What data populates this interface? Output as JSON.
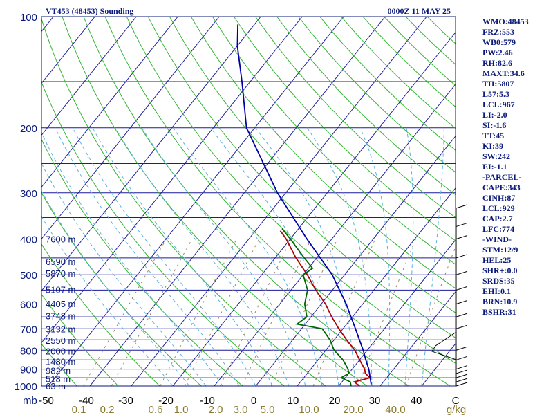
{
  "header": {
    "station": "VT453 (48453) Sounding",
    "time": "0000Z 11 MAY 25"
  },
  "indices": [
    "WMO:48453",
    "FRZ:553",
    "WB0:579",
    "PW:2.46",
    "RH:82.6",
    "MAXT:34.6",
    "TH:5807",
    "L57:5.3",
    "LCL:967",
    "LI:-2.0",
    "SI:-1.6",
    "TT:45",
    "KI:39",
    "SW:242",
    "EI:-1.1",
    "-PARCEL-",
    "CAPE:343",
    "CINH:87",
    "LCL:929",
    "CAP:2.7",
    "LFC:774",
    "-WIND-",
    "STM:12/9",
    "HEL:25",
    "SHR+:0.0",
    "SRDS:35",
    "EHI:0.1",
    "BRN:10.9",
    "BSHR:31"
  ],
  "colors": {
    "frame": "#0a1a7a",
    "isobar": "#1a1a9a",
    "isotherm": "#1a1a9a",
    "dry_adiabat": "#33b533",
    "moist_adiabat": "#5ab0e0",
    "mixing_ratio": "#9a8a60",
    "temperature": "#b00000",
    "dewpoint": "#006600",
    "parcel": "#0000aa",
    "axis_text": "#000000",
    "mixing_text": "#8a7a30"
  },
  "chart_data": {
    "type": "skew-t",
    "title": "VT453 (48453) Sounding",
    "ylabel": "mb",
    "pressure_ticks": [
      100,
      200,
      300,
      400,
      500,
      600,
      700,
      800,
      900,
      1000
    ],
    "pressure_range_mb": [
      1000,
      100
    ],
    "temperature_ticks": [
      "-50",
      "-40",
      "-30",
      "-20",
      "-10",
      "0",
      "10",
      "20",
      "30",
      "40",
      "C"
    ],
    "temperature_range_c": [
      -50,
      50
    ],
    "mixing_ratio_ticks": [
      "0.1",
      "0.2",
      "0.6",
      "1.0",
      "2.0",
      "3.0",
      "5.0",
      "10.0",
      "20.0",
      "40.0",
      "g/kg"
    ],
    "height_labels": [
      {
        "p": 400,
        "label": "7600 m"
      },
      {
        "p": 460,
        "label": "6590 m"
      },
      {
        "p": 495,
        "label": "5870 m"
      },
      {
        "p": 548,
        "label": "5107 m"
      },
      {
        "p": 598,
        "label": "4405 m"
      },
      {
        "p": 645,
        "label": "3748 m"
      },
      {
        "p": 700,
        "label": "3132 m"
      },
      {
        "p": 752,
        "label": "2550 m"
      },
      {
        "p": 805,
        "label": "2000 m"
      },
      {
        "p": 858,
        "label": "1480 m"
      },
      {
        "p": 908,
        "label": "982 m"
      },
      {
        "p": 955,
        "label": "518 m"
      },
      {
        "p": 1000,
        "label": "63 m"
      }
    ],
    "series": [
      {
        "points": [
          [
            1000,
            25
          ],
          [
            975,
            23
          ],
          [
            950,
            26
          ],
          [
            925,
            24
          ],
          [
            900,
            23
          ],
          [
            850,
            20
          ],
          [
            800,
            17
          ],
          [
            750,
            13
          ],
          [
            700,
            9
          ],
          [
            650,
            5
          ],
          [
            600,
            1
          ],
          [
            550,
            -4
          ],
          [
            500,
            -9
          ],
          [
            450,
            -15
          ],
          [
            400,
            -21
          ],
          [
            380,
            -24
          ]
        ]
      },
      {
        "points": [
          [
            1000,
            23
          ],
          [
            975,
            22
          ],
          [
            950,
            19
          ],
          [
            925,
            20
          ],
          [
            900,
            19
          ],
          [
            850,
            16
          ],
          [
            800,
            12
          ],
          [
            750,
            9
          ],
          [
            700,
            5
          ],
          [
            680,
            -2
          ],
          [
            650,
            -1
          ],
          [
            600,
            -4
          ],
          [
            550,
            -6
          ],
          [
            500,
            -10
          ],
          [
            480,
            -9
          ],
          [
            450,
            -13
          ],
          [
            400,
            -20
          ],
          [
            375,
            -24
          ]
        ]
      },
      {
        "points": [
          [
            990,
            27.5
          ],
          [
            950,
            26
          ],
          [
            900,
            24
          ],
          [
            850,
            21.5
          ],
          [
            800,
            19
          ],
          [
            700,
            13
          ],
          [
            600,
            6
          ],
          [
            500,
            -3
          ],
          [
            400,
            -16
          ],
          [
            300,
            -32
          ],
          [
            250,
            -41
          ],
          [
            200,
            -52
          ],
          [
            150,
            -62
          ],
          [
            120,
            -70
          ],
          [
            105,
            -74
          ]
        ]
      }
    ]
  }
}
